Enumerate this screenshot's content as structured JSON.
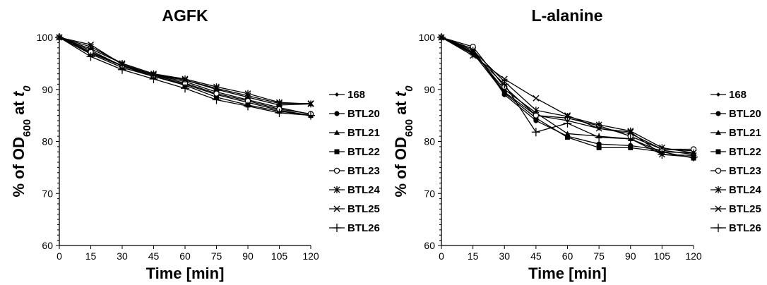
{
  "chart_data": [
    {
      "type": "line",
      "title": "AGFK",
      "xlabel": "Time [min]",
      "ylabel_parts": {
        "prefix": "% of OD",
        "subscript": "600",
        "middle": " at ",
        "italic": "t",
        "italic_sub": "0"
      },
      "x": [
        0,
        15,
        30,
        45,
        60,
        75,
        90,
        105,
        120
      ],
      "xlim": [
        0,
        120
      ],
      "ylim": [
        60,
        100
      ],
      "yticks": [
        60,
        70,
        80,
        90,
        100
      ],
      "legend_position": "right",
      "grid": false,
      "series": [
        {
          "name": "168",
          "marker": "diamond",
          "values": [
            100,
            97.5,
            94.5,
            92.5,
            91.0,
            89.0,
            87.5,
            86.0,
            85.0
          ]
        },
        {
          "name": "BTL20",
          "marker": "circle",
          "values": [
            100,
            97.0,
            94.5,
            92.8,
            91.5,
            89.5,
            88.0,
            86.5,
            85.2
          ]
        },
        {
          "name": "BTL21",
          "marker": "triangle",
          "values": [
            100,
            97.8,
            95.0,
            93.0,
            91.8,
            90.0,
            88.5,
            87.0,
            87.2
          ]
        },
        {
          "name": "BTL22",
          "marker": "square",
          "values": [
            100,
            96.8,
            94.2,
            92.5,
            90.8,
            88.5,
            87.0,
            85.8,
            85.0
          ]
        },
        {
          "name": "BTL23",
          "marker": "open-circle",
          "values": [
            100,
            97.2,
            94.6,
            92.7,
            91.2,
            89.2,
            87.8,
            86.2,
            85.3
          ]
        },
        {
          "name": "BTL24",
          "marker": "asterisk",
          "values": [
            100,
            98.2,
            95.0,
            93.0,
            92.0,
            90.5,
            89.2,
            87.5,
            87.2
          ]
        },
        {
          "name": "BTL25",
          "marker": "x",
          "values": [
            100,
            98.6,
            94.8,
            92.8,
            91.8,
            90.2,
            88.8,
            87.3,
            87.3
          ]
        },
        {
          "name": "BTL26",
          "marker": "plus",
          "values": [
            100,
            96.3,
            93.8,
            92.0,
            90.2,
            88.0,
            86.8,
            85.5,
            85.0
          ]
        }
      ]
    },
    {
      "type": "line",
      "title": "L-alanine",
      "xlabel": "Time [min]",
      "ylabel_parts": {
        "prefix": "% of OD",
        "subscript": "600",
        "middle": " at ",
        "italic": "t",
        "italic_sub": "0"
      },
      "x": [
        0,
        15,
        30,
        45,
        60,
        75,
        90,
        105,
        120
      ],
      "xlim": [
        0,
        120
      ],
      "ylim": [
        60,
        100
      ],
      "yticks": [
        60,
        70,
        80,
        90,
        100
      ],
      "legend_position": "right",
      "grid": false,
      "series": [
        {
          "name": "168",
          "marker": "diamond",
          "values": [
            100,
            97.5,
            89.5,
            85.0,
            84.0,
            82.5,
            81.5,
            78.5,
            78.2
          ]
        },
        {
          "name": "BTL20",
          "marker": "circle",
          "values": [
            100,
            97.8,
            89.0,
            84.0,
            81.0,
            79.5,
            79.2,
            78.3,
            77.5
          ]
        },
        {
          "name": "BTL21",
          "marker": "triangle",
          "values": [
            100,
            97.2,
            90.0,
            85.5,
            81.5,
            81.0,
            80.5,
            78.0,
            77.8
          ]
        },
        {
          "name": "BTL22",
          "marker": "square",
          "values": [
            100,
            97.0,
            89.3,
            84.5,
            80.8,
            78.8,
            78.8,
            78.0,
            76.8
          ]
        },
        {
          "name": "BTL23",
          "marker": "open-circle",
          "values": [
            100,
            98.2,
            90.5,
            85.0,
            84.5,
            83.0,
            81.0,
            78.5,
            78.5
          ]
        },
        {
          "name": "BTL24",
          "marker": "asterisk",
          "values": [
            100,
            97.5,
            91.5,
            86.0,
            84.8,
            83.2,
            82.0,
            78.8,
            77.8
          ]
        },
        {
          "name": "BTL25",
          "marker": "x",
          "values": [
            100,
            96.5,
            92.0,
            88.3,
            85.0,
            82.5,
            81.8,
            77.5,
            77.3
          ]
        },
        {
          "name": "BTL26",
          "marker": "plus",
          "values": [
            100,
            96.8,
            91.0,
            81.8,
            83.5,
            80.8,
            80.5,
            77.5,
            77.0
          ]
        }
      ]
    }
  ]
}
